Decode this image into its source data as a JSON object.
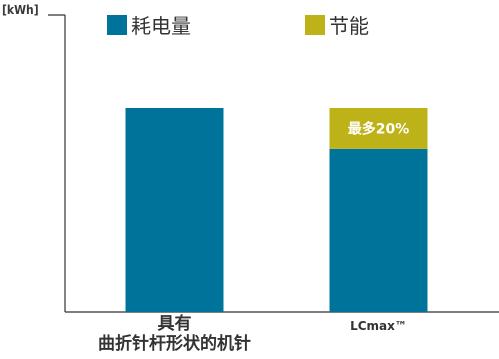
{
  "chart_data": {
    "type": "bar",
    "ylabel": "[kWh]",
    "categories": [
      "具有\n曲折针杆形状的机针",
      "LCmax™"
    ],
    "series": [
      {
        "name": "耗电量",
        "color": "#00739A",
        "values": [
          100,
          80
        ]
      },
      {
        "name": "节能",
        "color": "#BDB319",
        "values": [
          0,
          20
        ]
      }
    ],
    "annotations": [
      {
        "category": "LCmax™",
        "series": "节能",
        "text": "最多20%"
      }
    ],
    "ylim": [
      0,
      110
    ],
    "stacked": true,
    "grid": false,
    "legend": "top"
  }
}
